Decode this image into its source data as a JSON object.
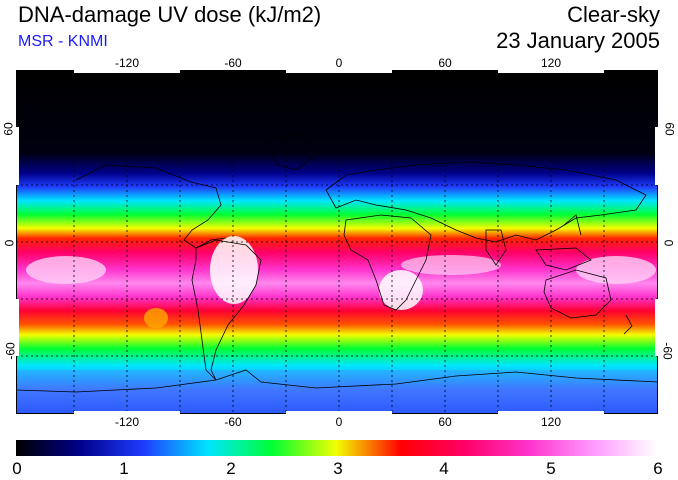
{
  "header": {
    "title": "DNA-damage UV dose (kJ/m2)",
    "subtitle": "MSR - KNMI",
    "condition": "Clear-sky",
    "date": "23 January 2005"
  },
  "axes": {
    "lon_ticks": [
      "-120",
      "-60",
      "0",
      "60",
      "120"
    ],
    "lat_ticks_left": [
      "60",
      "0",
      "-60"
    ],
    "lat_ticks_right": [
      "60",
      "0",
      "-60"
    ]
  },
  "colorbar": {
    "labels": [
      "0",
      "1",
      "2",
      "3",
      "4",
      "5",
      "6"
    ],
    "stops": [
      "#000000",
      "#00008b",
      "#1f3dff",
      "#00e5ff",
      "#00ff33",
      "#f2ff00",
      "#ff0000",
      "#ff0066",
      "#ff33cc",
      "#ff99ff",
      "#ffffff"
    ]
  },
  "map": {
    "description_key": "uv-dose-world-map",
    "bands": [
      {
        "name": "polar-night",
        "color": "#000000"
      },
      {
        "name": "blue",
        "color": "#1f3dff"
      },
      {
        "name": "cyan",
        "color": "#00e5ff"
      },
      {
        "name": "green",
        "color": "#00ff33"
      },
      {
        "name": "yellow",
        "color": "#f2ff00"
      },
      {
        "name": "red",
        "color": "#ff0000"
      },
      {
        "name": "magenta",
        "color": "#ff33cc"
      },
      {
        "name": "white",
        "color": "#ffffff"
      }
    ]
  }
}
